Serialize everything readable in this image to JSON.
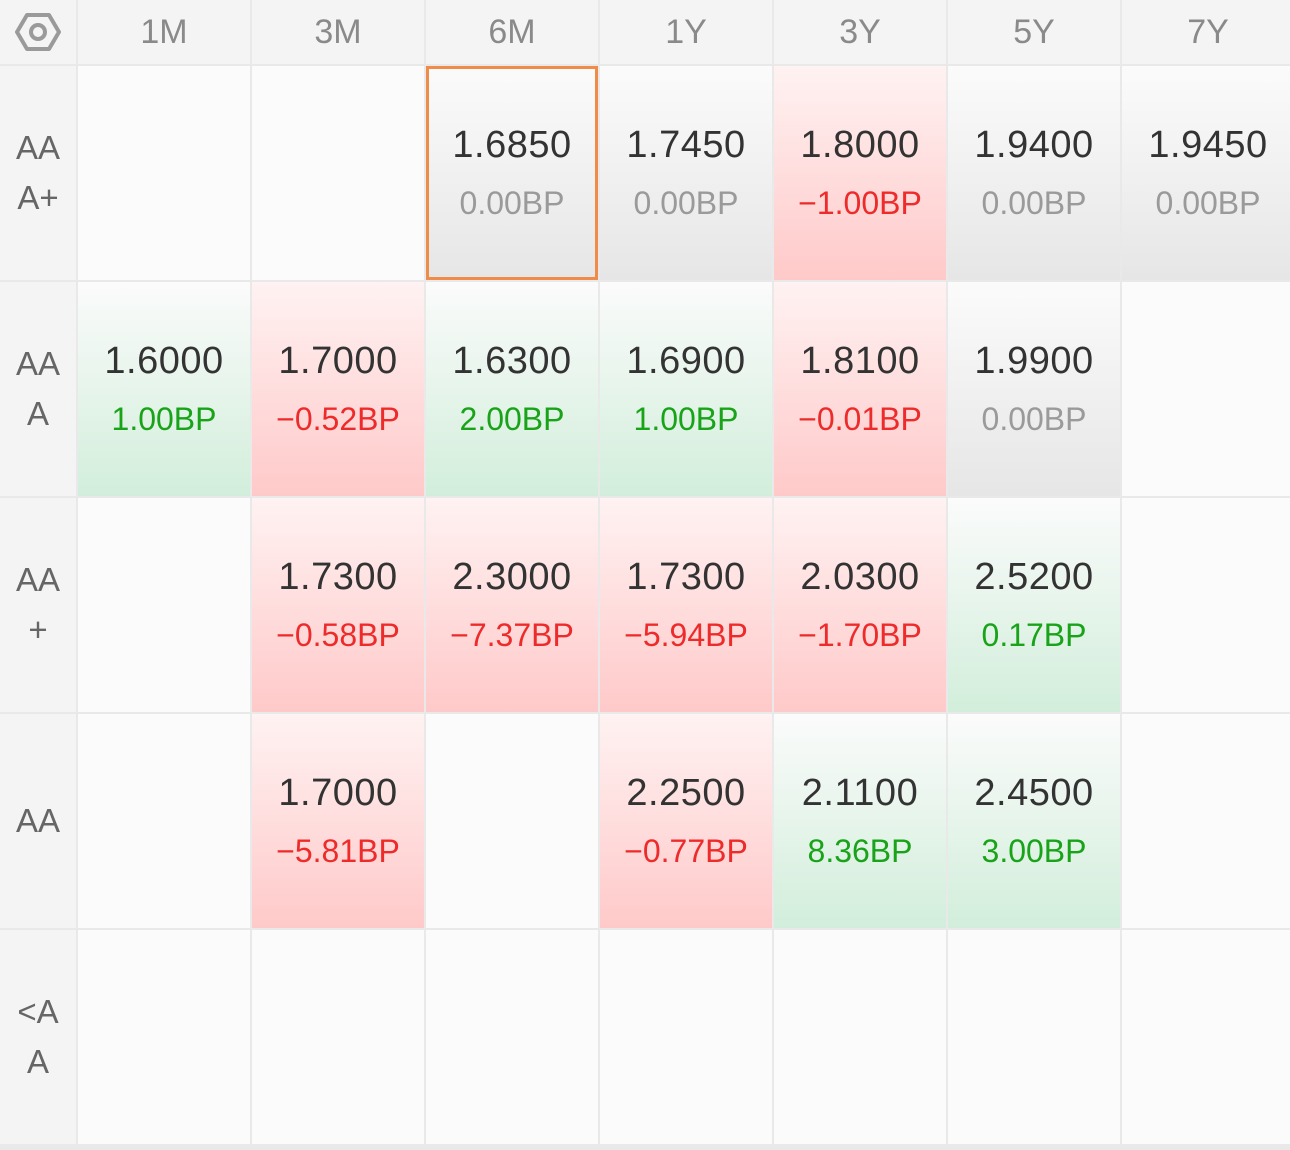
{
  "settings": {
    "icon": "settings-hexagon-icon"
  },
  "columns": [
    "1M",
    "3M",
    "6M",
    "1Y",
    "3Y",
    "5Y",
    "7Y"
  ],
  "colors": {
    "positive": "#19a319",
    "negative": "#ee2b2b",
    "neutral": "#9a9a9a",
    "selected_border": "#f08c4a"
  },
  "rows": [
    {
      "label": "AAA+",
      "cells": [
        null,
        null,
        {
          "rate": "1.6850",
          "change": "0.00BP",
          "trend": "flat",
          "selected": true
        },
        {
          "rate": "1.7450",
          "change": "0.00BP",
          "trend": "flat"
        },
        {
          "rate": "1.8000",
          "change": "−1.00BP",
          "trend": "down"
        },
        {
          "rate": "1.9400",
          "change": "0.00BP",
          "trend": "flat"
        },
        {
          "rate": "1.9450",
          "change": "0.00BP",
          "trend": "flat"
        }
      ]
    },
    {
      "label": "AAA",
      "cells": [
        {
          "rate": "1.6000",
          "change": "1.00BP",
          "trend": "up"
        },
        {
          "rate": "1.7000",
          "change": "−0.52BP",
          "trend": "down"
        },
        {
          "rate": "1.6300",
          "change": "2.00BP",
          "trend": "up"
        },
        {
          "rate": "1.6900",
          "change": "1.00BP",
          "trend": "up"
        },
        {
          "rate": "1.8100",
          "change": "−0.01BP",
          "trend": "down"
        },
        {
          "rate": "1.9900",
          "change": "0.00BP",
          "trend": "flat"
        },
        null
      ]
    },
    {
      "label": "AA+",
      "cells": [
        null,
        {
          "rate": "1.7300",
          "change": "−0.58BP",
          "trend": "down"
        },
        {
          "rate": "2.3000",
          "change": "−7.37BP",
          "trend": "down"
        },
        {
          "rate": "1.7300",
          "change": "−5.94BP",
          "trend": "down"
        },
        {
          "rate": "2.0300",
          "change": "−1.70BP",
          "trend": "down"
        },
        {
          "rate": "2.5200",
          "change": "0.17BP",
          "trend": "up"
        },
        null
      ]
    },
    {
      "label": "AA",
      "cells": [
        null,
        {
          "rate": "1.7000",
          "change": "−5.81BP",
          "trend": "down"
        },
        null,
        {
          "rate": "2.2500",
          "change": "−0.77BP",
          "trend": "down"
        },
        {
          "rate": "2.1100",
          "change": "8.36BP",
          "trend": "up"
        },
        {
          "rate": "2.4500",
          "change": "3.00BP",
          "trend": "up"
        },
        null
      ]
    },
    {
      "label": "<AA",
      "cells": [
        null,
        null,
        null,
        null,
        null,
        null,
        null
      ]
    }
  ]
}
